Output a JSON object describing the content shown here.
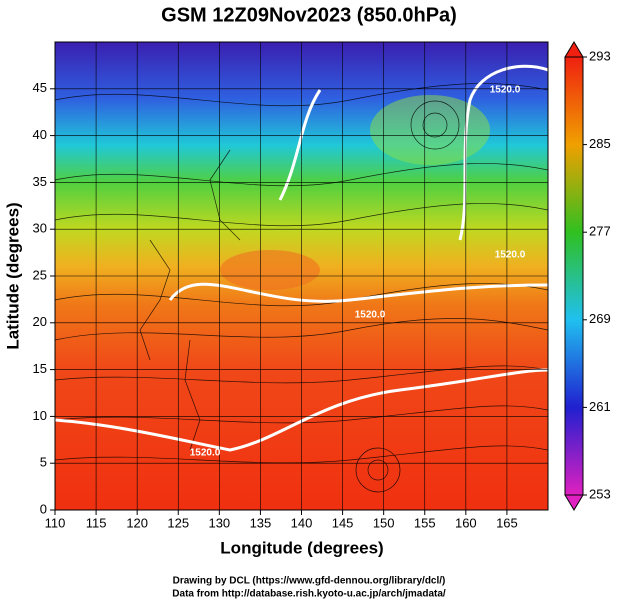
{
  "chart_data": {
    "type": "map",
    "title": "GSM 12Z09Nov2023 (850.0hPa)",
    "x_label": "Longitude (degrees)",
    "y_label": "Latitude  (degrees)",
    "xlim": [
      110,
      170
    ],
    "xticks": [
      110,
      115,
      120,
      125,
      130,
      135,
      140,
      145,
      150,
      155,
      160,
      165
    ],
    "ylim": [
      0,
      50
    ],
    "yticks": [
      0,
      5,
      10,
      15,
      20,
      25,
      30,
      35,
      40,
      45
    ],
    "grid": true,
    "colorbar": {
      "ticks": [
        253,
        261,
        269,
        277,
        285,
        293
      ],
      "colors": [
        "#e020c0",
        "#2020d0",
        "#20c0f0",
        "#30c020",
        "#f0a000",
        "#f02010"
      ]
    },
    "contour_labels": [
      "1520.0"
    ],
    "footer": [
      "Drawing by DCL (https://www.gfd-dennou.org/library/dcl/)",
      "Data from http://database.rish.kyoto-u.ac.jp/arch/jmadata/"
    ]
  }
}
